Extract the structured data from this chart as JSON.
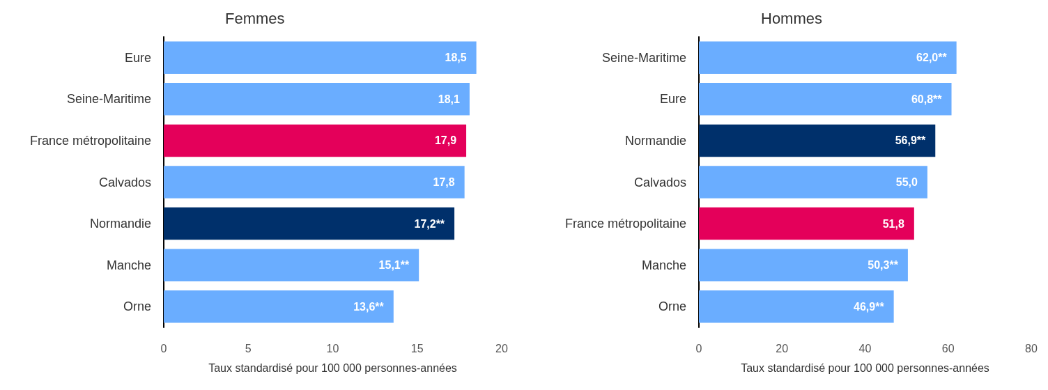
{
  "chart_data": [
    {
      "type": "bar",
      "orientation": "horizontal",
      "title": "Femmes",
      "xlabel": "Taux standardisé pour 100 000 personnes-années",
      "categories": [
        "Eure",
        "Seine-Maritime",
        "France métropolitaine",
        "Calvados",
        "Normandie",
        "Manche",
        "Orne"
      ],
      "values": [
        18.5,
        18.1,
        17.9,
        17.8,
        17.2,
        15.1,
        13.6
      ],
      "colors": [
        "#6aadff",
        "#6aadff",
        "#e4005a",
        "#6aadff",
        "#00306b",
        "#6aadff",
        "#6aadff"
      ],
      "value_labels": [
        "18,5",
        "18,1",
        "17,9",
        "17,8",
        "17,2**",
        "15,1**",
        "13,6**"
      ],
      "xlim": [
        0,
        20
      ],
      "xticks": [
        0,
        5,
        10,
        15,
        20
      ]
    },
    {
      "type": "bar",
      "orientation": "horizontal",
      "title": "Hommes",
      "xlabel": "Taux standardisé pour 100 000 personnes-années",
      "categories": [
        "Seine-Maritime",
        "Eure",
        "Normandie",
        "Calvados",
        "France métropolitaine",
        "Manche",
        "Orne"
      ],
      "values": [
        62.0,
        60.8,
        56.9,
        55.0,
        51.8,
        50.3,
        46.9
      ],
      "colors": [
        "#6aadff",
        "#6aadff",
        "#00306b",
        "#6aadff",
        "#e4005a",
        "#6aadff",
        "#6aadff"
      ],
      "value_labels": [
        "62,0**",
        "60,8**",
        "56,9**",
        "55,0",
        "51,8",
        "50,3**",
        "46,9**"
      ],
      "xlim": [
        0,
        80
      ],
      "xticks": [
        0,
        20,
        40,
        60,
        80
      ]
    }
  ]
}
